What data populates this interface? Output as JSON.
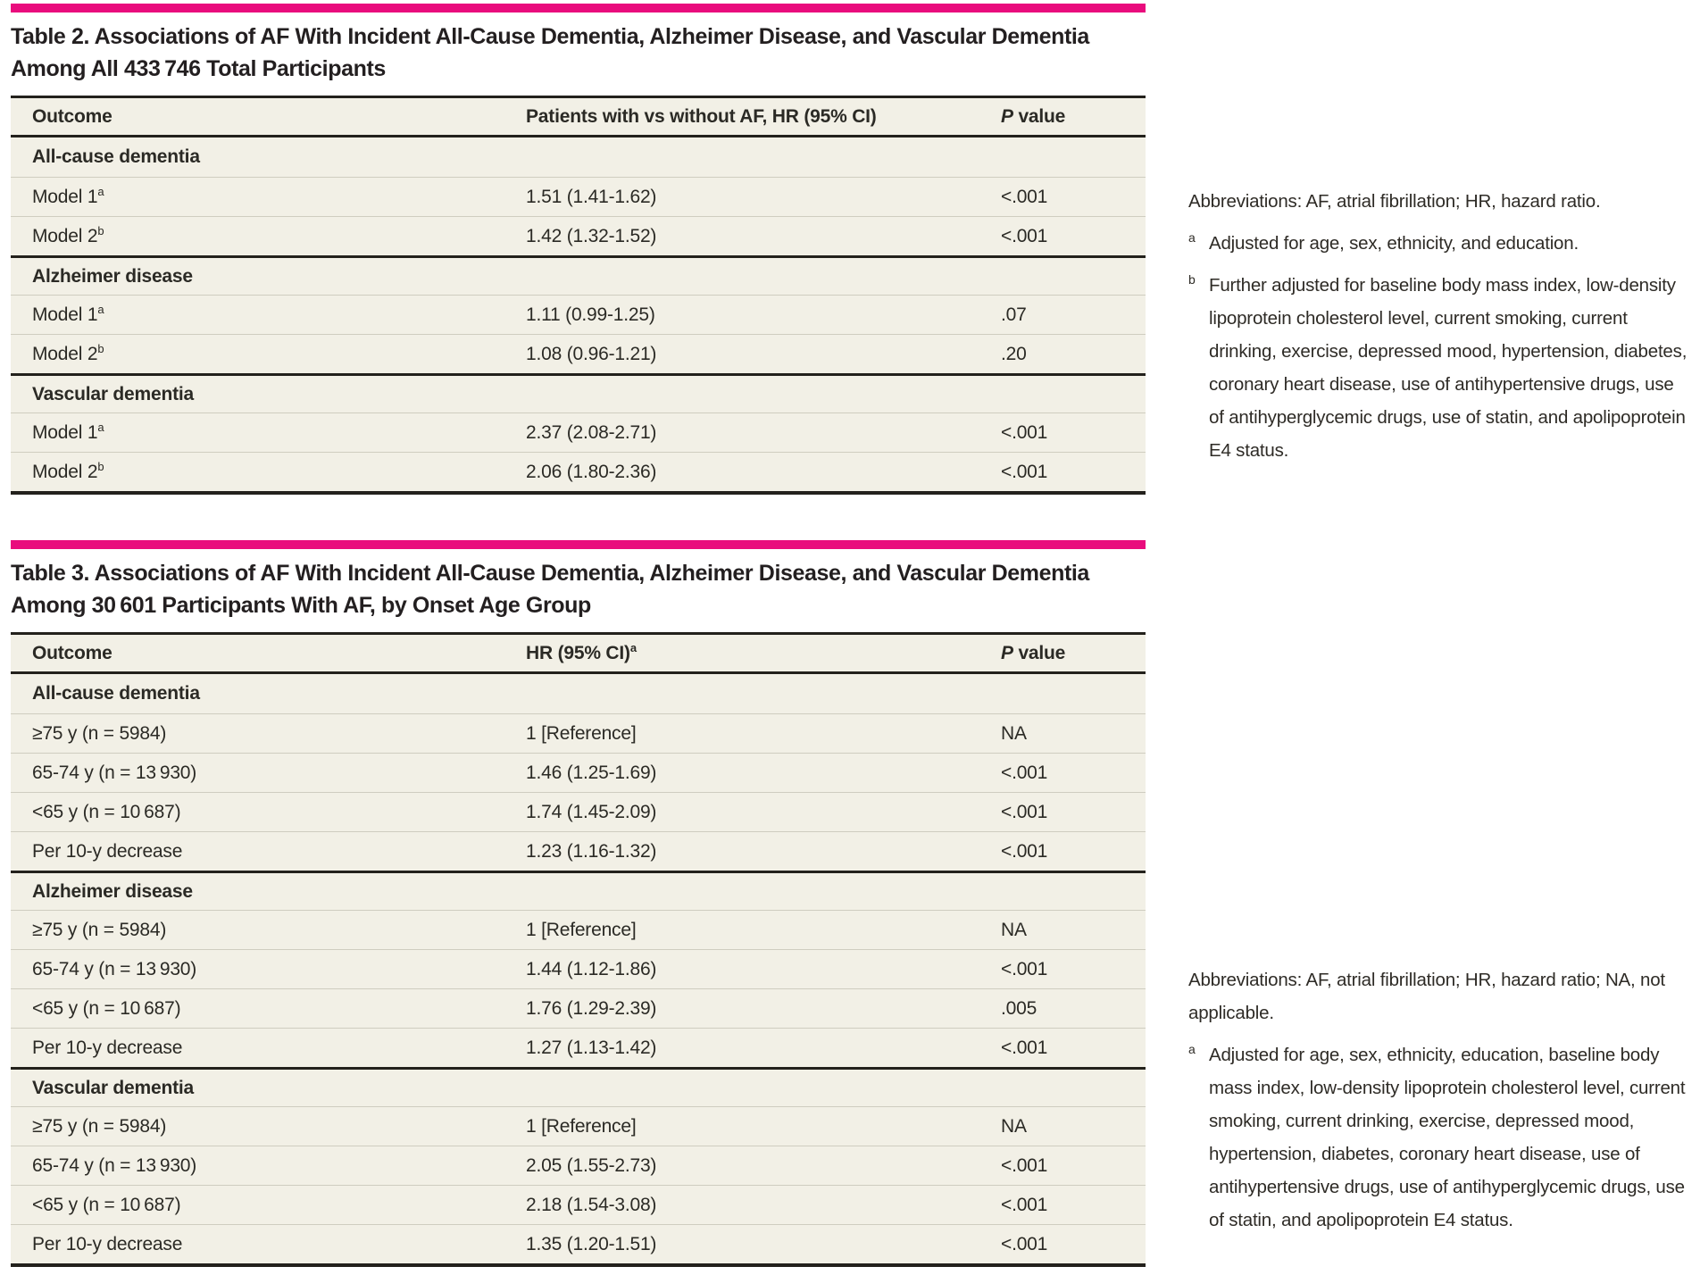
{
  "accent_color": "#e90c7d",
  "table_background": "#f2f0e6",
  "table2": {
    "title_lines": [
      "Table 2. Associations of AF With Incident All-Cause Dementia, Alzheimer Disease, and Vascular Dementia",
      "Among All 433 746 Total Participants"
    ],
    "columns": {
      "outcome": "Outcome",
      "hr": "Patients with vs without AF, HR (95% CI)",
      "hr_sup": "",
      "p_italic": "P",
      "p_rest": " value"
    },
    "sections": [
      {
        "label": "All-cause dementia",
        "rows": [
          {
            "outcome": "Model 1",
            "sup": "a",
            "hr": "1.51 (1.41-1.62)",
            "p": "<.001"
          },
          {
            "outcome": "Model 2",
            "sup": "b",
            "hr": "1.42 (1.32-1.52)",
            "p": "<.001"
          }
        ]
      },
      {
        "label": "Alzheimer disease",
        "rows": [
          {
            "outcome": "Model 1",
            "sup": "a",
            "hr": "1.11 (0.99-1.25)",
            "p": ".07"
          },
          {
            "outcome": "Model 2",
            "sup": "b",
            "hr": "1.08 (0.96-1.21)",
            "p": ".20"
          }
        ]
      },
      {
        "label": "Vascular dementia",
        "rows": [
          {
            "outcome": "Model 1",
            "sup": "a",
            "hr": "2.37 (2.08-2.71)",
            "p": "<.001"
          },
          {
            "outcome": "Model 2",
            "sup": "b",
            "hr": "2.06 (1.80-2.36)",
            "p": "<.001"
          }
        ]
      }
    ],
    "footnote": {
      "abbreviations": "Abbreviations: AF, atrial fibrillation; HR, hazard ratio.",
      "notes": [
        {
          "marker": "a",
          "text": "Adjusted for age, sex, ethnicity, and education."
        },
        {
          "marker": "b",
          "text": "Further adjusted for baseline body mass index, low-density lipoprotein cholesterol level, current smoking, current drinking, exercise, depressed mood, hypertension, diabetes, coronary heart disease, use of antihypertensive drugs, use of antihyperglycemic drugs, use of statin, and apolipoprotein E4 status."
        }
      ]
    }
  },
  "table3": {
    "title_lines": [
      "Table 3. Associations of AF With Incident All-Cause Dementia, Alzheimer Disease, and Vascular Dementia",
      "Among 30 601 Participants With AF, by Onset Age Group"
    ],
    "columns": {
      "outcome": "Outcome",
      "hr": "HR (95% CI)",
      "hr_sup": "a",
      "p_italic": "P",
      "p_rest": " value"
    },
    "sections": [
      {
        "label": "All-cause dementia",
        "rows": [
          {
            "outcome": "≥75 y (n = 5984)",
            "sup": "",
            "hr": "1 [Reference]",
            "p": "NA"
          },
          {
            "outcome": "65-74 y (n = 13 930)",
            "sup": "",
            "hr": "1.46 (1.25-1.69)",
            "p": "<.001"
          },
          {
            "outcome": "<65 y (n = 10 687)",
            "sup": "",
            "hr": "1.74 (1.45-2.09)",
            "p": "<.001"
          },
          {
            "outcome": "Per 10-y decrease",
            "sup": "",
            "hr": "1.23 (1.16-1.32)",
            "p": "<.001"
          }
        ]
      },
      {
        "label": "Alzheimer disease",
        "rows": [
          {
            "outcome": "≥75 y (n = 5984)",
            "sup": "",
            "hr": "1 [Reference]",
            "p": "NA"
          },
          {
            "outcome": "65-74 y (n = 13 930)",
            "sup": "",
            "hr": "1.44 (1.12-1.86)",
            "p": "<.001"
          },
          {
            "outcome": "<65 y (n = 10 687)",
            "sup": "",
            "hr": "1.76 (1.29-2.39)",
            "p": ".005"
          },
          {
            "outcome": "Per 10-y decrease",
            "sup": "",
            "hr": "1.27 (1.13-1.42)",
            "p": "<.001"
          }
        ]
      },
      {
        "label": "Vascular dementia",
        "rows": [
          {
            "outcome": "≥75 y (n = 5984)",
            "sup": "",
            "hr": "1 [Reference]",
            "p": "NA"
          },
          {
            "outcome": "65-74 y (n = 13 930)",
            "sup": "",
            "hr": "2.05 (1.55-2.73)",
            "p": "<.001"
          },
          {
            "outcome": "<65 y (n = 10 687)",
            "sup": "",
            "hr": "2.18 (1.54-3.08)",
            "p": "<.001"
          },
          {
            "outcome": "Per 10-y decrease",
            "sup": "",
            "hr": "1.35 (1.20-1.51)",
            "p": "<.001"
          }
        ]
      }
    ],
    "footnote": {
      "abbreviations": "Abbreviations: AF, atrial fibrillation; HR, hazard ratio; NA, not applicable.",
      "notes": [
        {
          "marker": "a",
          "text": "Adjusted for age, sex, ethnicity, education, baseline body mass index, low-density lipoprotein cholesterol level, current smoking, current drinking, exercise, depressed mood, hypertension, diabetes, coronary heart disease, use of antihypertensive drugs, use of antihyperglycemic drugs, use of statin, and apolipoprotein E4 status."
        }
      ]
    }
  }
}
